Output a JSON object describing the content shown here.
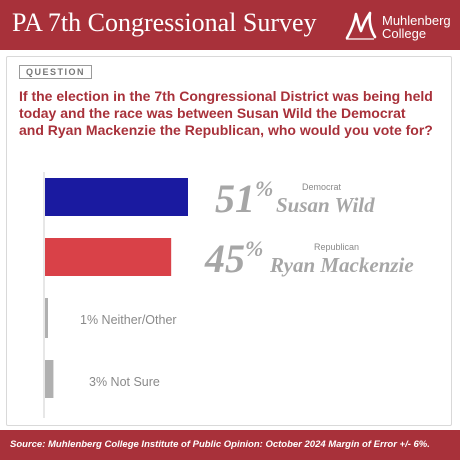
{
  "header": {
    "title": "PA 7th Congressional Survey"
  },
  "logo": {
    "line1": "Muhlenberg",
    "line2": "College",
    "mark": "muhlenberg-m-logo"
  },
  "question": {
    "badge": "QUESTION",
    "text": "If the election in the 7th Congressional District was being held today and the race was between Susan Wild the Democrat and Ryan Mackenzie the Republican, who would you vote for?"
  },
  "chart_data": {
    "type": "bar",
    "orientation": "horizontal",
    "xlim": [
      0,
      60
    ],
    "bars": [
      {
        "value": 51,
        "value_label": "51%",
        "party": "Democrat",
        "name": "Susan Wild",
        "color": "#1a1aa0",
        "style": "large"
      },
      {
        "value": 45,
        "value_label": "45%",
        "party": "Republican",
        "name": "Ryan Mackenzie",
        "color": "#d94148",
        "style": "large"
      },
      {
        "value": 1,
        "value_label": "1%",
        "party": "",
        "name": "Neither/Other",
        "color": "#b0b0b0",
        "style": "small"
      },
      {
        "value": 3,
        "value_label": "3%",
        "party": "",
        "name": "Not Sure",
        "color": "#b0b0b0",
        "style": "small"
      }
    ]
  },
  "footer": {
    "text": "Source: Muhlenberg College Institute of Public Opinion: October 2024 Margin of Error +/- 6%."
  }
}
